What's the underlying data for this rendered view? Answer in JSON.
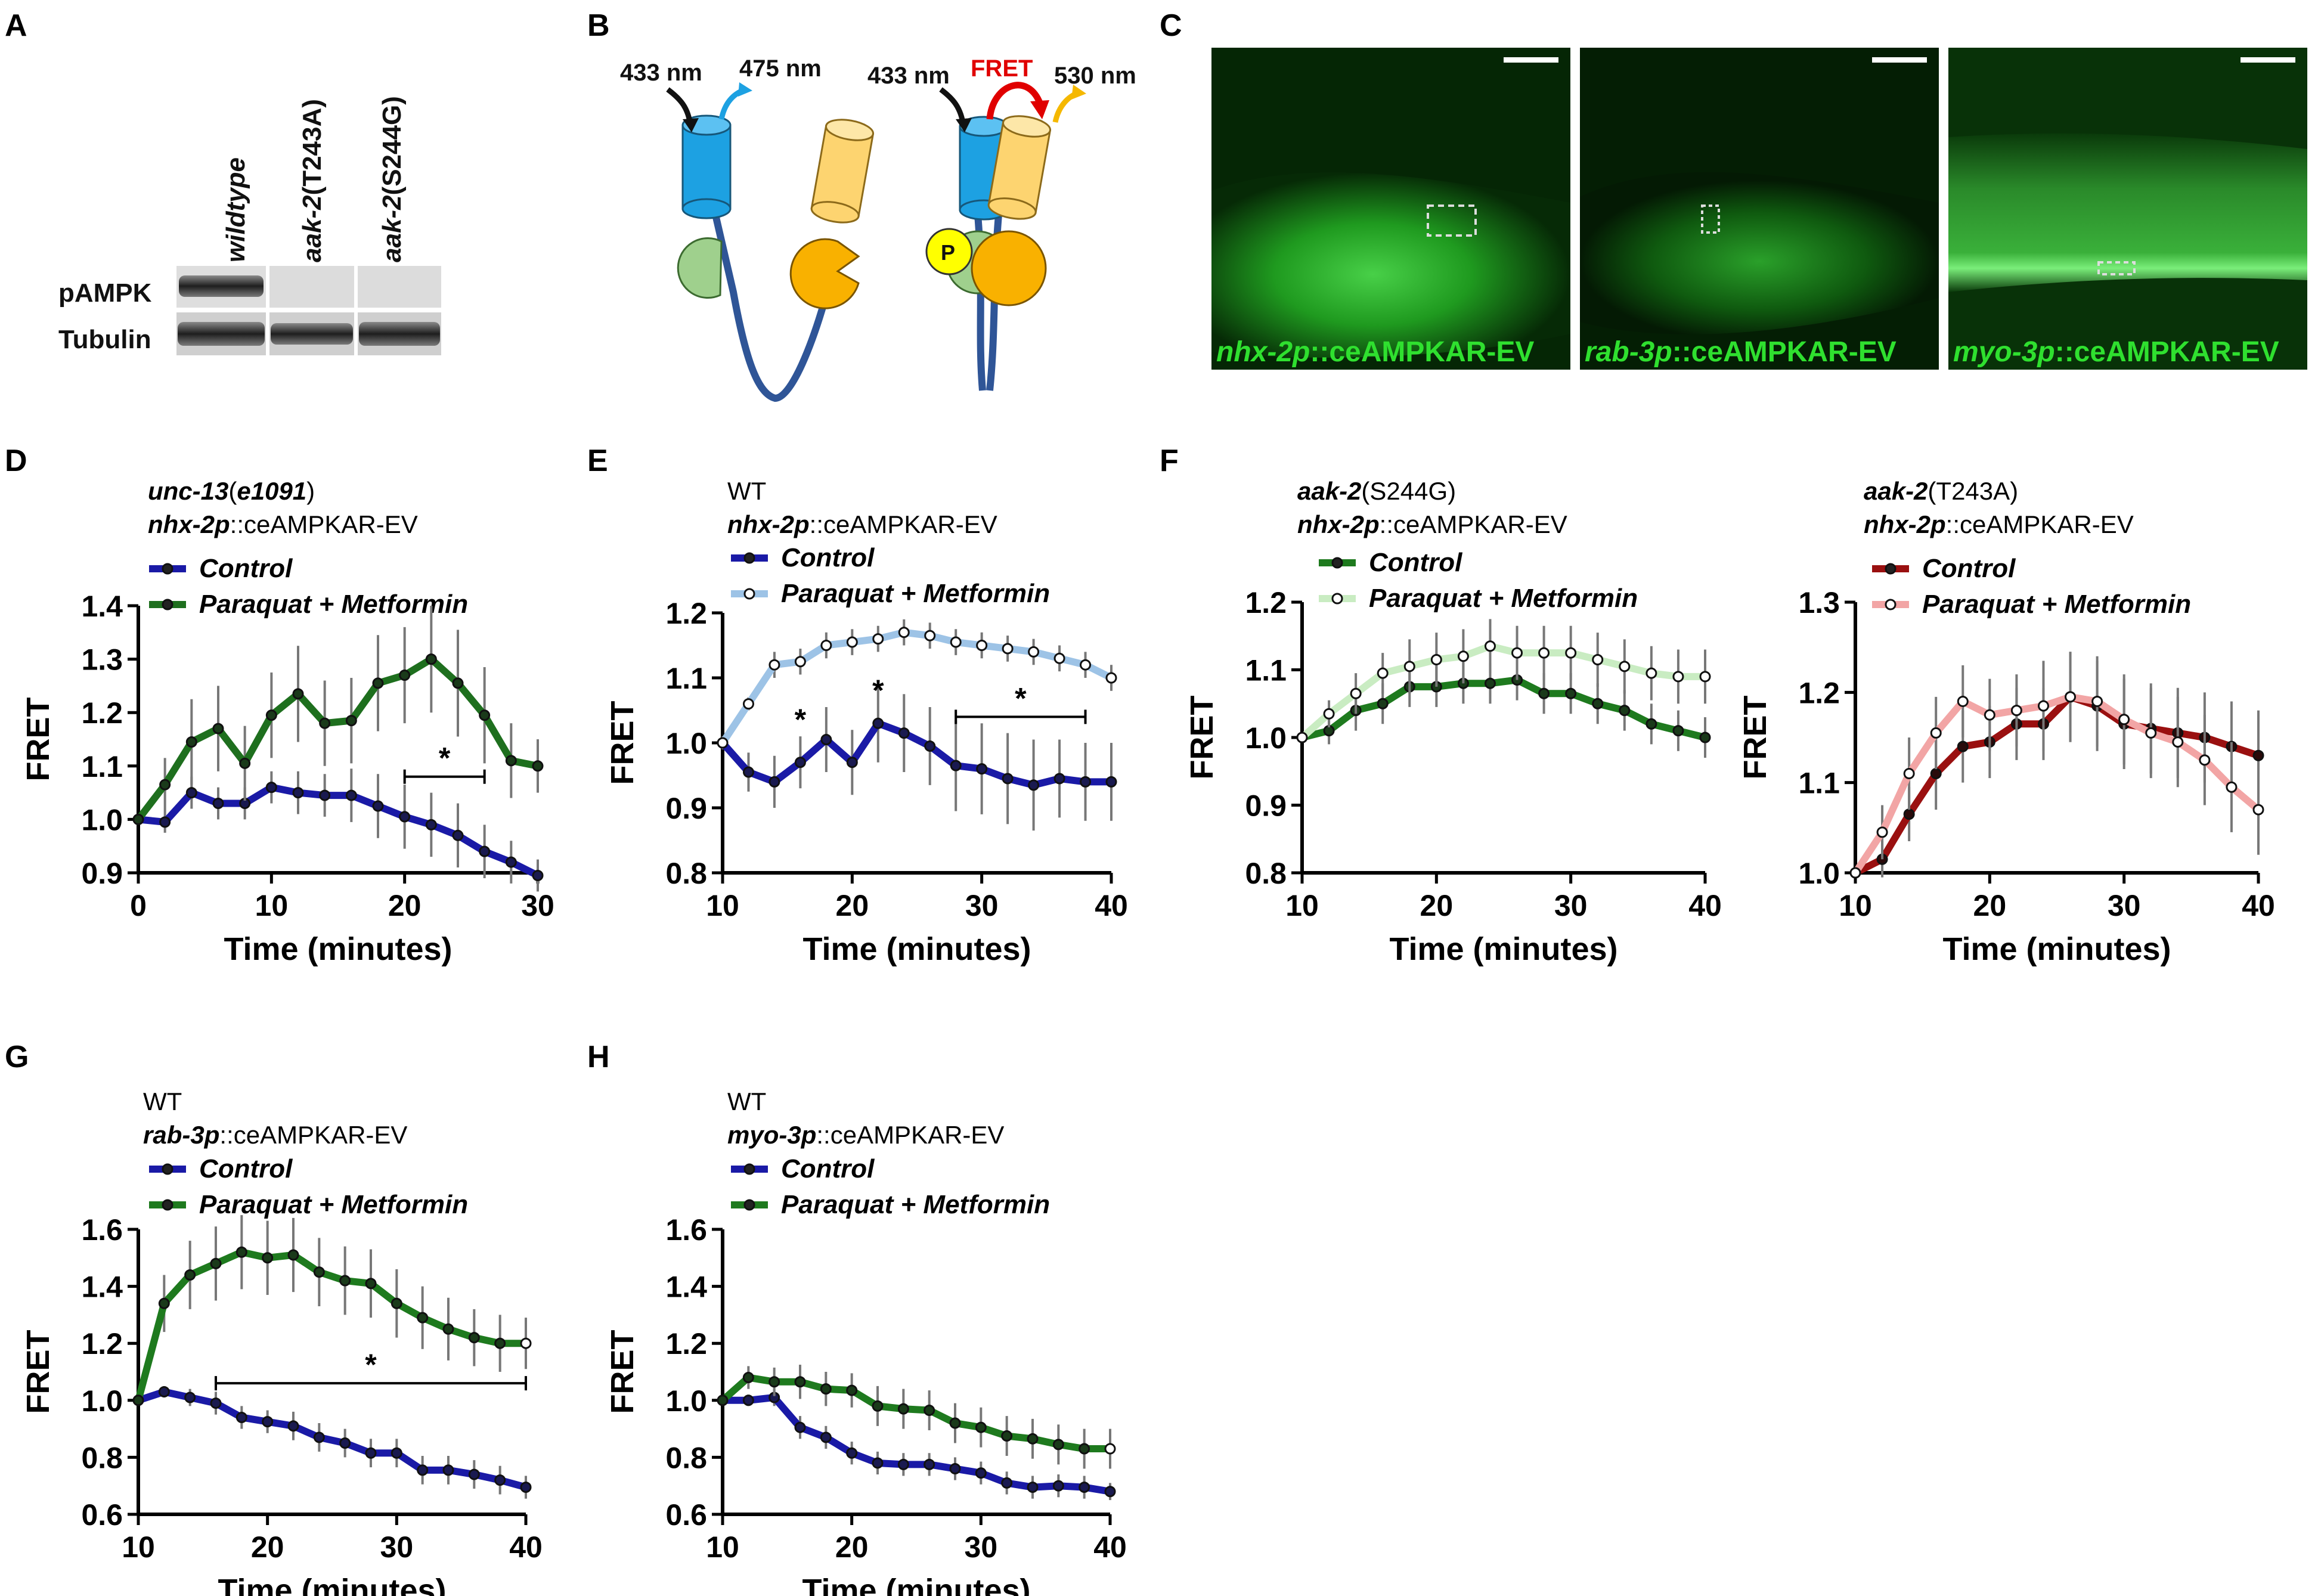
{
  "panel_letters": [
    "A",
    "B",
    "C",
    "D",
    "E",
    "F",
    "G",
    "H"
  ],
  "panelA": {
    "lanes": [
      {
        "gene": "wildtype",
        "allele": ""
      },
      {
        "gene": "aak-2",
        "allele": "(T243A)"
      },
      {
        "gene": "aak-2",
        "allele": "(S244G)"
      }
    ],
    "rows": [
      "pAMPK",
      "Tubulin"
    ]
  },
  "panelB": {
    "left_excitation": "433 nm",
    "left_emission": "475 nm",
    "right_excitation": "433 nm",
    "right_fret": "FRET",
    "right_emission": "530 nm",
    "phospho": "P",
    "colors": {
      "cfp": "#1da1e2",
      "yfp": "#fdd470",
      "left_domain": "#9fd08d",
      "right_domain": "#f9b100",
      "linker": "#2f5597",
      "phospho": "#ffff00",
      "fret_arrow": "#e00000"
    }
  },
  "panelC": {
    "images": [
      {
        "gene": "nhx-2p",
        "suffix": "::ceAMPKAR-EV"
      },
      {
        "gene": "rab-3p",
        "suffix": "::ceAMPKAR-EV"
      },
      {
        "gene": "myo-3p",
        "suffix": "::ceAMPKAR-EV"
      }
    ]
  },
  "chart_data": [
    {
      "id": "D",
      "type": "line",
      "header": [
        {
          "gene": "unc-13",
          "rest": "(",
          "gene2": "e1091",
          "rest2": ")"
        },
        {
          "gene": "nhx-2p",
          "rest": "::ceAMPKAR-EV"
        }
      ],
      "xlabel": "Time (minutes)",
      "ylabel": "FRET",
      "xlim": [
        0,
        30
      ],
      "ylim": [
        0.9,
        1.4
      ],
      "xticks": [
        0,
        10,
        20,
        30
      ],
      "yticks": [
        0.9,
        1.0,
        1.1,
        1.2,
        1.3,
        1.4
      ],
      "x": [
        0,
        2,
        4,
        6,
        8,
        10,
        12,
        14,
        16,
        18,
        20,
        22,
        24,
        26,
        28,
        30
      ],
      "series": [
        {
          "name": "Control",
          "color": "#1a1aa6",
          "marker": "#1a1a50",
          "values": [
            1.0,
            0.995,
            1.05,
            1.03,
            1.03,
            1.06,
            1.05,
            1.045,
            1.045,
            1.025,
            1.005,
            0.99,
            0.97,
            0.94,
            0.92,
            0.895
          ],
          "err": [
            0.01,
            0.02,
            0.03,
            0.03,
            0.03,
            0.03,
            0.04,
            0.04,
            0.05,
            0.06,
            0.06,
            0.06,
            0.06,
            0.05,
            0.04,
            0.03
          ]
        },
        {
          "name": "Paraquat + Metformin",
          "color": "#1e6f1e",
          "marker": "#1a3a1a",
          "values": [
            1.0,
            1.065,
            1.145,
            1.17,
            1.105,
            1.195,
            1.235,
            1.18,
            1.185,
            1.255,
            1.27,
            1.3,
            1.255,
            1.195,
            1.11,
            1.1
          ],
          "err": [
            0.01,
            0.05,
            0.08,
            0.08,
            0.07,
            0.08,
            0.09,
            0.08,
            0.08,
            0.09,
            0.09,
            0.1,
            0.1,
            0.09,
            0.07,
            0.05
          ]
        }
      ],
      "annotations": [
        {
          "text": "*",
          "x1": 20,
          "x2": 26,
          "y": 1.08
        }
      ]
    },
    {
      "id": "E",
      "type": "line",
      "header": [
        {
          "gene": "",
          "rest": "WT"
        },
        {
          "gene": "nhx-2p",
          "rest": "::ceAMPKAR-EV"
        }
      ],
      "xlabel": "Time (minutes)",
      "ylabel": "FRET",
      "xlim": [
        10,
        40
      ],
      "ylim": [
        0.8,
        1.2
      ],
      "xticks": [
        10,
        20,
        30,
        40
      ],
      "yticks": [
        0.8,
        0.9,
        1.0,
        1.1,
        1.2
      ],
      "x": [
        10,
        12,
        14,
        16,
        18,
        20,
        22,
        24,
        26,
        28,
        30,
        32,
        34,
        36,
        38,
        40
      ],
      "series": [
        {
          "name": "Control",
          "color": "#1a1aa6",
          "marker": "#1a1a50",
          "values": [
            1.0,
            0.955,
            0.94,
            0.97,
            1.005,
            0.97,
            1.03,
            1.015,
            0.995,
            0.965,
            0.96,
            0.945,
            0.935,
            0.945,
            0.94,
            0.94
          ],
          "err": [
            0.01,
            0.03,
            0.04,
            0.04,
            0.05,
            0.05,
            0.06,
            0.06,
            0.06,
            0.07,
            0.07,
            0.07,
            0.07,
            0.06,
            0.06,
            0.06
          ],
          "open": false
        },
        {
          "name": "Paraquat + Metformin",
          "color": "#9dc3e6",
          "marker": "#1a1a1a",
          "values": [
            1.0,
            1.06,
            1.12,
            1.125,
            1.15,
            1.155,
            1.16,
            1.17,
            1.165,
            1.155,
            1.15,
            1.145,
            1.14,
            1.13,
            1.12,
            1.1
          ],
          "err": [
            0.005,
            0.01,
            0.02,
            0.02,
            0.02,
            0.02,
            0.02,
            0.02,
            0.02,
            0.02,
            0.02,
            0.02,
            0.02,
            0.02,
            0.02,
            0.02
          ],
          "open": true
        }
      ],
      "annotations": [
        {
          "text": "*",
          "x1": 16,
          "x2": 16,
          "y": 1.02
        },
        {
          "text": "*",
          "x1": 22,
          "x2": 22,
          "y": 1.065
        },
        {
          "text": "*",
          "x1": 28,
          "x2": 38,
          "y": 1.04
        }
      ]
    },
    {
      "id": "F1",
      "type": "line",
      "header": [
        {
          "gene": "aak-2",
          "rest": "(S244G)"
        },
        {
          "gene": "nhx-2p",
          "rest": "::ceAMPKAR-EV"
        }
      ],
      "xlabel": "Time (minutes)",
      "ylabel": "FRET",
      "xlim": [
        10,
        40
      ],
      "ylim": [
        0.8,
        1.2
      ],
      "xticks": [
        10,
        20,
        30,
        40
      ],
      "yticks": [
        0.8,
        0.9,
        1.0,
        1.1,
        1.2
      ],
      "x": [
        10,
        12,
        14,
        16,
        18,
        20,
        22,
        24,
        26,
        28,
        30,
        32,
        34,
        36,
        38,
        40
      ],
      "series": [
        {
          "name": "Control",
          "color": "#1e7a1e",
          "marker": "#1a3a1a",
          "values": [
            1.0,
            1.01,
            1.04,
            1.05,
            1.075,
            1.075,
            1.08,
            1.08,
            1.085,
            1.065,
            1.065,
            1.05,
            1.04,
            1.02,
            1.01,
            1.0
          ],
          "err": [
            0.005,
            0.02,
            0.03,
            0.03,
            0.03,
            0.03,
            0.03,
            0.03,
            0.03,
            0.03,
            0.03,
            0.03,
            0.03,
            0.03,
            0.03,
            0.03
          ],
          "open": false
        },
        {
          "name": "Paraquat + Metformin",
          "color": "#c9ecc2",
          "marker": "#1a1a1a",
          "values": [
            1.0,
            1.035,
            1.065,
            1.095,
            1.105,
            1.115,
            1.12,
            1.135,
            1.125,
            1.125,
            1.125,
            1.115,
            1.105,
            1.095,
            1.09,
            1.09
          ],
          "err": [
            0.005,
            0.02,
            0.03,
            0.03,
            0.04,
            0.04,
            0.04,
            0.04,
            0.04,
            0.04,
            0.04,
            0.04,
            0.04,
            0.04,
            0.04,
            0.04
          ],
          "open": true
        }
      ],
      "annotations": []
    },
    {
      "id": "F2",
      "type": "line",
      "header": [
        {
          "gene": "aak-2",
          "rest": "(T243A)"
        },
        {
          "gene": "nhx-2p",
          "rest": "::ceAMPKAR-EV"
        }
      ],
      "xlabel": "Time (minutes)",
      "ylabel": "FRET",
      "xlim": [
        10,
        40
      ],
      "ylim": [
        1.0,
        1.3
      ],
      "xticks": [
        10,
        20,
        30,
        40
      ],
      "yticks": [
        1.0,
        1.1,
        1.2,
        1.3
      ],
      "x": [
        10,
        12,
        14,
        16,
        18,
        20,
        22,
        24,
        26,
        28,
        30,
        32,
        34,
        36,
        38,
        40
      ],
      "series": [
        {
          "name": "Control",
          "color": "#9a1010",
          "marker": "#2a0a0a",
          "values": [
            1.0,
            1.015,
            1.065,
            1.11,
            1.14,
            1.145,
            1.165,
            1.165,
            1.195,
            1.185,
            1.165,
            1.16,
            1.155,
            1.15,
            1.14,
            1.13
          ],
          "err": [
            0.005,
            0.02,
            0.03,
            0.04,
            0.04,
            0.04,
            0.04,
            0.04,
            0.05,
            0.05,
            0.05,
            0.05,
            0.05,
            0.05,
            0.05,
            0.05
          ],
          "open": false
        },
        {
          "name": "Paraquat + Metformin",
          "color": "#f2a5a5",
          "marker": "#1a1a1a",
          "values": [
            1.0,
            1.045,
            1.11,
            1.155,
            1.19,
            1.175,
            1.18,
            1.185,
            1.195,
            1.19,
            1.17,
            1.155,
            1.145,
            1.125,
            1.095,
            1.07
          ],
          "err": [
            0.005,
            0.03,
            0.04,
            0.04,
            0.04,
            0.04,
            0.04,
            0.05,
            0.05,
            0.05,
            0.05,
            0.05,
            0.05,
            0.05,
            0.05,
            0.05
          ],
          "open": true
        }
      ],
      "annotations": []
    },
    {
      "id": "G",
      "type": "line",
      "header": [
        {
          "gene": "",
          "rest": "WT"
        },
        {
          "gene": "rab-3p",
          "rest": "::ceAMPKAR-EV"
        }
      ],
      "xlabel": "Time (minutes)",
      "ylabel": "FRET",
      "xlim": [
        10,
        40
      ],
      "ylim": [
        0.6,
        1.6
      ],
      "xticks": [
        10,
        20,
        30,
        40
      ],
      "yticks": [
        0.6,
        0.8,
        1.0,
        1.2,
        1.4,
        1.6
      ],
      "x": [
        10,
        12,
        14,
        16,
        18,
        20,
        22,
        24,
        26,
        28,
        30,
        32,
        34,
        36,
        38,
        40
      ],
      "series": [
        {
          "name": "Control",
          "color": "#1a1aa6",
          "marker": "#1a1a50",
          "values": [
            1.0,
            1.03,
            1.01,
            0.99,
            0.94,
            0.925,
            0.91,
            0.87,
            0.85,
            0.815,
            0.815,
            0.755,
            0.755,
            0.74,
            0.72,
            0.695
          ],
          "err": [
            0.01,
            0.02,
            0.03,
            0.04,
            0.04,
            0.04,
            0.05,
            0.05,
            0.05,
            0.05,
            0.05,
            0.05,
            0.05,
            0.05,
            0.05,
            0.04
          ],
          "open": false
        },
        {
          "name": "Paraquat + Metformin",
          "color": "#1e7a1e",
          "marker": "#1a3a1a",
          "values": [
            1.0,
            1.34,
            1.44,
            1.48,
            1.52,
            1.5,
            1.51,
            1.45,
            1.42,
            1.41,
            1.34,
            1.29,
            1.25,
            1.22,
            1.2,
            1.2
          ],
          "err": [
            0.01,
            0.1,
            0.12,
            0.13,
            0.13,
            0.13,
            0.13,
            0.12,
            0.12,
            0.12,
            0.12,
            0.11,
            0.11,
            0.1,
            0.1,
            0.09
          ],
          "open": false,
          "last_open": true
        }
      ],
      "annotations": [
        {
          "text": "*",
          "x1": 16,
          "x2": 40,
          "y": 1.06
        }
      ]
    },
    {
      "id": "H",
      "type": "line",
      "header": [
        {
          "gene": "",
          "rest": "WT"
        },
        {
          "gene": "myo-3p",
          "rest": "::ceAMPKAR-EV"
        }
      ],
      "xlabel": "Time (minutes)",
      "ylabel": "FRET",
      "xlim": [
        10,
        40
      ],
      "ylim": [
        0.6,
        1.6
      ],
      "xticks": [
        10,
        20,
        30,
        40
      ],
      "yticks": [
        0.6,
        0.8,
        1.0,
        1.2,
        1.4,
        1.6
      ],
      "x": [
        10,
        12,
        14,
        16,
        18,
        20,
        22,
        24,
        26,
        28,
        30,
        32,
        34,
        36,
        38,
        40
      ],
      "series": [
        {
          "name": "Control",
          "color": "#1a1aa6",
          "marker": "#1a1a50",
          "values": [
            1.0,
            1.0,
            1.01,
            0.905,
            0.87,
            0.815,
            0.78,
            0.775,
            0.775,
            0.76,
            0.745,
            0.71,
            0.695,
            0.7,
            0.695,
            0.68
          ],
          "err": [
            0.01,
            0.02,
            0.03,
            0.04,
            0.04,
            0.04,
            0.04,
            0.04,
            0.04,
            0.04,
            0.04,
            0.04,
            0.04,
            0.04,
            0.04,
            0.03
          ],
          "open": false
        },
        {
          "name": "Paraquat + Metformin",
          "color": "#1e7a1e",
          "marker": "#1a3a1a",
          "values": [
            1.0,
            1.08,
            1.065,
            1.065,
            1.04,
            1.035,
            0.98,
            0.97,
            0.965,
            0.92,
            0.905,
            0.875,
            0.865,
            0.845,
            0.83,
            0.83
          ],
          "err": [
            0.01,
            0.04,
            0.05,
            0.06,
            0.06,
            0.06,
            0.07,
            0.07,
            0.07,
            0.07,
            0.07,
            0.07,
            0.07,
            0.07,
            0.07,
            0.07
          ],
          "open": false,
          "last_open": true
        }
      ],
      "annotations": []
    }
  ]
}
